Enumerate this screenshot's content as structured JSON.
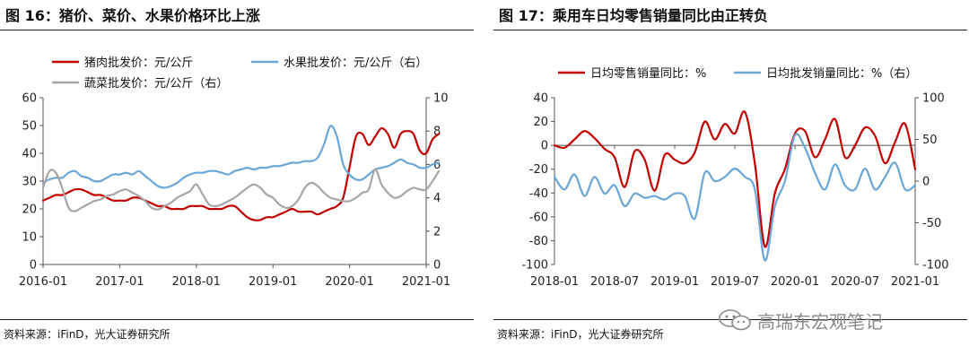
{
  "watermark": {
    "text": "高瑞东宏观笔记",
    "icon": "wechat-icon"
  },
  "chart_data": [
    {
      "type": "line",
      "title": "图 16：猪价、菜价、水果价格环比上涨",
      "source": "资料来源：iFinD，光大证券研究所",
      "x_ticks": [
        "2016-01",
        "2017-01",
        "2018-01",
        "2019-01",
        "2020-01",
        "2021-01"
      ],
      "x_range": [
        0,
        60
      ],
      "y_left": {
        "min": 0,
        "max": 60,
        "ticks": [
          "0",
          "10",
          "20",
          "30",
          "40",
          "50",
          "60"
        ]
      },
      "y_right": {
        "min": 0,
        "max": 10,
        "ticks": [
          "0",
          "2",
          "4",
          "6",
          "8",
          "10"
        ]
      },
      "series": [
        {
          "name": "猪肉批发价：元/公斤",
          "axis": "left",
          "color": "#c00000",
          "values": [
            23,
            24,
            25,
            25,
            26,
            27,
            27,
            26,
            25,
            25,
            24,
            23,
            23,
            23,
            24,
            24,
            23,
            22,
            21,
            21,
            20,
            20,
            20,
            21,
            21,
            21,
            20,
            20,
            20,
            21,
            21,
            19,
            17,
            16,
            16,
            17,
            17,
            18,
            19,
            20,
            19,
            19,
            19,
            18,
            19,
            20,
            21,
            24,
            35,
            46,
            47,
            43,
            46,
            49,
            47,
            42,
            47,
            48,
            47,
            41,
            40,
            45,
            47
          ]
        },
        {
          "name": "水果批发价：元/公斤（右）",
          "axis": "right",
          "color": "#6aa6d6",
          "values": [
            4.9,
            5.1,
            5.2,
            5.2,
            5.5,
            5.6,
            5.3,
            5.2,
            5.0,
            5.0,
            5.2,
            5.4,
            5.4,
            5.5,
            5.4,
            5.6,
            5.3,
            5.0,
            4.7,
            4.6,
            4.7,
            4.9,
            5.2,
            5.4,
            5.5,
            5.5,
            5.6,
            5.6,
            5.5,
            5.4,
            5.6,
            5.7,
            5.8,
            5.7,
            5.8,
            5.8,
            5.9,
            5.9,
            6.0,
            6.1,
            6.1,
            6.2,
            6.2,
            6.4,
            7.2,
            8.3,
            7.7,
            6.0,
            5.4,
            5.1,
            5.1,
            5.4,
            5.7,
            5.8,
            5.9,
            6.1,
            6.3,
            6.1,
            6.0,
            5.8,
            5.8,
            6.0,
            6.1
          ]
        },
        {
          "name": "蔬菜批发价：元/公斤（右）",
          "axis": "right",
          "color": "#a6a6a6",
          "values": [
            4.6,
            5.6,
            5.5,
            4.6,
            3.4,
            3.2,
            3.4,
            3.6,
            3.8,
            3.9,
            4.1,
            4.2,
            4.4,
            4.5,
            4.3,
            4.1,
            3.8,
            3.4,
            3.3,
            3.5,
            3.7,
            4.0,
            4.2,
            4.4,
            4.8,
            4.2,
            3.6,
            3.5,
            3.6,
            3.8,
            4.0,
            4.3,
            4.6,
            4.8,
            4.6,
            4.2,
            4.0,
            3.6,
            3.4,
            3.5,
            3.9,
            4.6,
            4.9,
            4.7,
            4.3,
            4.0,
            3.9,
            3.8,
            3.8,
            4.0,
            4.3,
            4.5,
            5.7,
            4.8,
            4.3,
            4.0,
            4.1,
            4.4,
            4.6,
            4.5,
            4.5,
            5.0,
            5.6
          ]
        }
      ]
    },
    {
      "type": "line",
      "title": "图 17：乘用车日均零售销量同比由正转负",
      "source": "资料来源：iFinD，光大证券研究所",
      "x_ticks": [
        "2018-01",
        "2018-07",
        "2019-01",
        "2019-07",
        "2020-01",
        "2020-07",
        "2021-01"
      ],
      "x_range": [
        0,
        36
      ],
      "y_left": {
        "min": -100,
        "max": 40,
        "ticks": [
          "-100",
          "-80",
          "-60",
          "-40",
          "-20",
          "0",
          "20",
          "40"
        ]
      },
      "y_right": {
        "min": -100,
        "max": 100,
        "ticks": [
          "-100",
          "-50",
          "0",
          "50",
          "100"
        ]
      },
      "series": [
        {
          "name": "日均零售销量同比：%",
          "axis": "left",
          "color": "#c00000",
          "values": [
            0,
            -2,
            5,
            12,
            6,
            -3,
            -10,
            -35,
            -5,
            -12,
            -38,
            -8,
            -12,
            -15,
            -6,
            20,
            5,
            18,
            10,
            28,
            -15,
            -85,
            -40,
            -20,
            10,
            12,
            -10,
            5,
            22,
            -10,
            0,
            15,
            8,
            -15,
            3,
            18,
            -20
          ]
        },
        {
          "name": "日均批发销量同比：%（右）",
          "axis": "right",
          "color": "#6aa6d6",
          "values": [
            5,
            -10,
            8,
            -18,
            5,
            -15,
            -5,
            -30,
            -15,
            -20,
            -18,
            -22,
            -15,
            -18,
            -45,
            10,
            0,
            5,
            15,
            5,
            -10,
            -95,
            -30,
            0,
            55,
            40,
            10,
            -10,
            20,
            -5,
            -10,
            15,
            -10,
            5,
            22,
            -10,
            -5
          ]
        }
      ]
    }
  ]
}
